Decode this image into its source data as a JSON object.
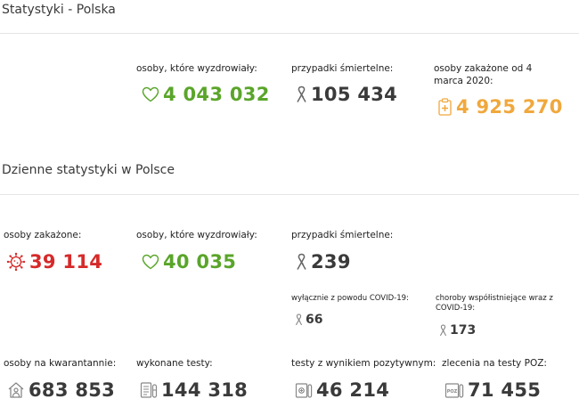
{
  "header": {
    "title": "Statystyki - Polska"
  },
  "summary": {
    "recovered": {
      "label": "osoby, które wyzdrowiały:",
      "value": "4 043 032"
    },
    "deaths": {
      "label": "przypadki śmiertelne:",
      "value": "105 434"
    },
    "infected_total": {
      "label": "osoby zakażone od 4 marca 2020:",
      "value": "4 925 270"
    }
  },
  "daily": {
    "title": "Dzienne statystyki w Polsce",
    "infected": {
      "label": "osoby zakażone:",
      "value": "39 114"
    },
    "recovered": {
      "label": "osoby, które wyzdrowiały:",
      "value": "40 035"
    },
    "deaths": {
      "label": "przypadki śmiertelne:",
      "value": "239"
    },
    "deaths_covid_only": {
      "label": "wyłącznie z powodu COVID-19:",
      "value": "66"
    },
    "deaths_comorbid": {
      "label": "choroby współistniejące wraz z COVID-19:",
      "value": "173"
    },
    "quarantine": {
      "label": "osoby na kwarantannie:",
      "value": "683 853"
    },
    "tests": {
      "label": "wykonane testy:",
      "value": "144 318"
    },
    "positive_tests": {
      "label": "testy z wynikiem pozytywnym:",
      "value": "46 214"
    },
    "poz_orders": {
      "label": "zlecenia na testy POZ:",
      "value": "71 455"
    }
  },
  "colors": {
    "green": "#5aa52a",
    "red": "#d62a2a",
    "orange": "#f0a83c",
    "dark": "#333333",
    "grey_icon": "#888888"
  },
  "icons": {
    "recovered": "heart-icon",
    "deaths": "ribbon-icon",
    "infected_total": "medical-clipboard-icon",
    "infected": "virus-icon",
    "quarantine": "home-person-icon",
    "tests": "test-list-icon",
    "positive_tests": "test-tube-icon",
    "poz_orders": "poz-tube-icon"
  }
}
